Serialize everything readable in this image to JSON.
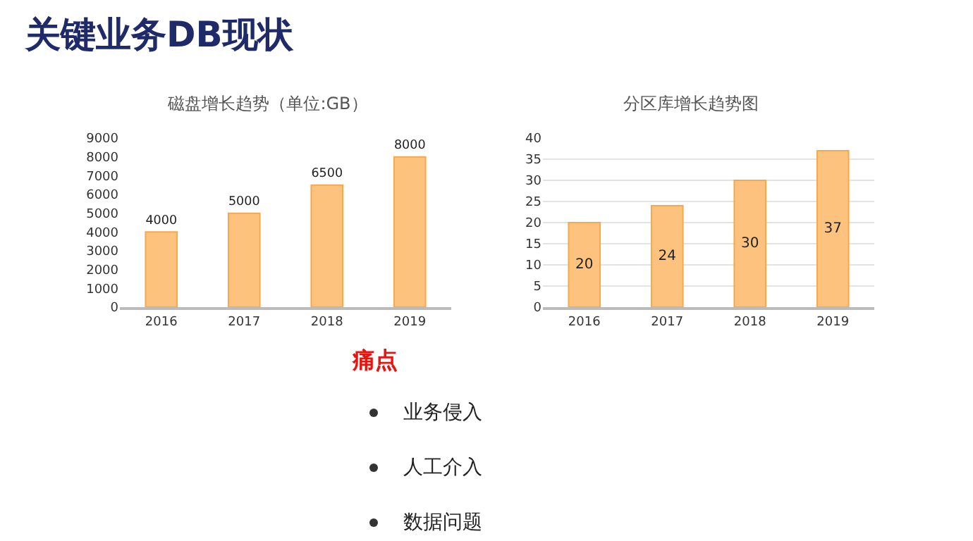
{
  "chart_data": [
    {
      "type": "other",
      "title": "关键业务DB现状"
    },
    {
      "type": "bar",
      "title": "磁盘增长趋势（单位:GB）",
      "categories": [
        "2016",
        "2017",
        "2018",
        "2019"
      ],
      "values": [
        4000,
        5000,
        6500,
        8000
      ],
      "color": "#fdc27e",
      "ylim": [
        0,
        9000
      ],
      "yticks": [
        0,
        1000,
        2000,
        3000,
        4000,
        5000,
        6000,
        7000,
        8000,
        9000
      ],
      "data_labels": true,
      "grid": false
    },
    {
      "type": "bar",
      "title": "分区库增长趋势图",
      "categories": [
        "2016",
        "2017",
        "2018",
        "2019"
      ],
      "values": [
        20,
        24,
        30,
        37
      ],
      "color": "#fdc27e",
      "ylim": [
        0,
        40
      ],
      "yticks": [
        0,
        5,
        10,
        15,
        20,
        25,
        30,
        35,
        40
      ],
      "data_labels": true,
      "grid": true
    },
    {
      "type": "other",
      "title": "痛点",
      "annotations": [
        "业务侵入",
        "人工介入",
        "数据问题"
      ]
    }
  ]
}
